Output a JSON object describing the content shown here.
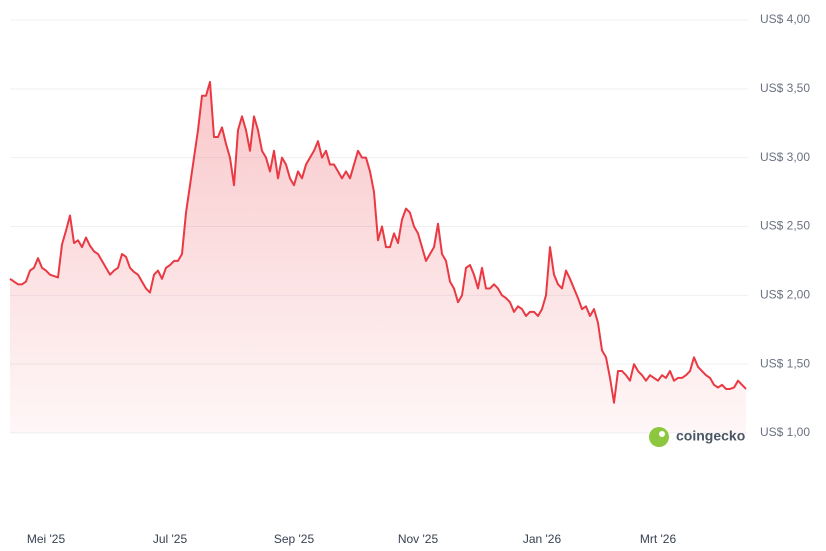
{
  "chart_data": {
    "type": "line",
    "categories": [
      null,
      null,
      null,
      null,
      null,
      null,
      null,
      null,
      null,
      "Mei '25",
      null,
      null,
      null,
      null,
      null,
      null,
      null,
      null,
      null,
      null,
      null,
      null,
      null,
      null,
      null,
      null,
      null,
      null,
      null,
      null,
      null,
      null,
      null,
      null,
      null,
      null,
      null,
      null,
      null,
      null,
      "Jul '25",
      null,
      null,
      null,
      null,
      null,
      null,
      null,
      null,
      null,
      null,
      null,
      null,
      null,
      null,
      null,
      null,
      null,
      null,
      null,
      null,
      null,
      null,
      null,
      null,
      null,
      null,
      null,
      null,
      null,
      null,
      "Sep '25",
      null,
      null,
      null,
      null,
      null,
      null,
      null,
      null,
      null,
      null,
      null,
      null,
      null,
      null,
      null,
      null,
      null,
      null,
      null,
      null,
      null,
      null,
      null,
      null,
      null,
      null,
      null,
      null,
      null,
      null,
      "Nov '25",
      null,
      null,
      null,
      null,
      null,
      null,
      null,
      null,
      null,
      null,
      null,
      null,
      null,
      null,
      null,
      null,
      null,
      null,
      null,
      null,
      null,
      null,
      null,
      null,
      null,
      null,
      null,
      null,
      null,
      null,
      "Jan '26",
      null,
      null,
      null,
      null,
      null,
      null,
      null,
      null,
      null,
      null,
      null,
      null,
      null,
      null,
      null,
      null,
      null,
      null,
      null,
      null,
      null,
      null,
      null,
      null,
      null,
      null,
      null,
      null,
      "Mrt '26",
      null,
      null,
      null,
      null,
      null,
      null,
      null,
      null,
      null,
      null,
      null,
      null,
      null,
      null,
      null,
      null,
      null,
      null,
      null,
      null,
      null,
      null
    ],
    "values": [
      2.12,
      2.1,
      2.08,
      2.08,
      2.1,
      2.18,
      2.2,
      2.27,
      2.2,
      2.18,
      2.15,
      2.14,
      2.13,
      2.37,
      2.47,
      2.58,
      2.38,
      2.4,
      2.35,
      2.42,
      2.36,
      2.32,
      2.3,
      2.25,
      2.2,
      2.15,
      2.18,
      2.2,
      2.3,
      2.28,
      2.2,
      2.17,
      2.15,
      2.1,
      2.05,
      2.02,
      2.15,
      2.18,
      2.12,
      2.2,
      2.22,
      2.25,
      2.25,
      2.3,
      2.6,
      2.8,
      3.0,
      3.2,
      3.45,
      3.45,
      3.55,
      3.15,
      3.15,
      3.22,
      3.1,
      3.0,
      2.8,
      3.2,
      3.3,
      3.2,
      3.05,
      3.3,
      3.2,
      3.05,
      3.0,
      2.9,
      3.05,
      2.85,
      3.0,
      2.95,
      2.85,
      2.8,
      2.9,
      2.85,
      2.95,
      3.0,
      3.05,
      3.12,
      3.0,
      3.05,
      2.95,
      2.95,
      2.9,
      2.85,
      2.9,
      2.85,
      2.95,
      3.05,
      3.0,
      3.0,
      2.9,
      2.75,
      2.4,
      2.5,
      2.35,
      2.35,
      2.45,
      2.38,
      2.55,
      2.63,
      2.6,
      2.5,
      2.45,
      2.35,
      2.25,
      2.3,
      2.35,
      2.52,
      2.3,
      2.25,
      2.1,
      2.05,
      1.95,
      2.0,
      2.2,
      2.22,
      2.15,
      2.05,
      2.2,
      2.05,
      2.05,
      2.08,
      2.05,
      2.0,
      1.98,
      1.95,
      1.88,
      1.92,
      1.9,
      1.85,
      1.88,
      1.88,
      1.85,
      1.9,
      2.0,
      2.35,
      2.15,
      2.08,
      2.05,
      2.18,
      2.12,
      2.05,
      1.98,
      1.9,
      1.92,
      1.85,
      1.9,
      1.8,
      1.6,
      1.55,
      1.4,
      1.22,
      1.45,
      1.45,
      1.42,
      1.38,
      1.5,
      1.45,
      1.42,
      1.38,
      1.42,
      1.4,
      1.38,
      1.42,
      1.4,
      1.45,
      1.38,
      1.4,
      1.4,
      1.42,
      1.45,
      1.55,
      1.48,
      1.45,
      1.42,
      1.4,
      1.35,
      1.33,
      1.35,
      1.32,
      1.32,
      1.33,
      1.38,
      1.35,
      1.32
    ],
    "color": "#ea3943",
    "ylim": [
      1,
      4
    ],
    "yticks": [
      {
        "value": 1,
        "label": "US$ 1,00"
      },
      {
        "value": 1.5,
        "label": "US$ 1,50"
      },
      {
        "value": 2,
        "label": "US$ 2,00"
      },
      {
        "value": 2.5,
        "label": "US$ 2,50"
      },
      {
        "value": 3,
        "label": "US$ 3,00"
      },
      {
        "value": 3.5,
        "label": "US$ 3,50"
      },
      {
        "value": 4,
        "label": "US$ 4,00"
      }
    ],
    "grid": true,
    "watermark": "coingecko"
  }
}
